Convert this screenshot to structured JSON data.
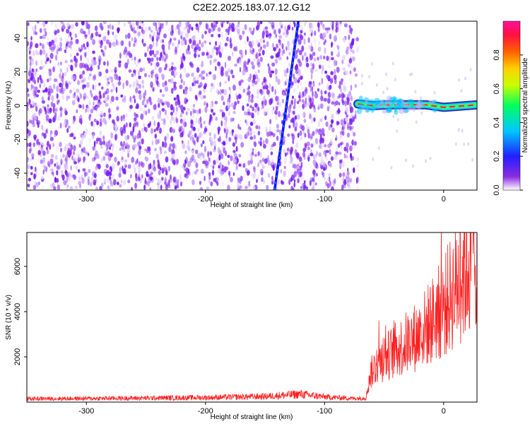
{
  "title": "C2E2.2025.183.07.12.G12",
  "colors": {
    "scatter_purple": "#7a1fff",
    "snr_line": "#ff2020",
    "axis": "#000000"
  },
  "chart_data": [
    {
      "type": "heatmap",
      "xlabel": "Height of straight line (km)",
      "ylabel": "Frequency (Hz)",
      "xlim": [
        -350,
        28
      ],
      "ylim": [
        -50,
        50
      ],
      "xticks": [
        -300,
        -200,
        -100,
        0
      ],
      "xtick_labels": [
        "-300",
        "-200",
        "-100",
        "0"
      ],
      "yticks": [
        -40,
        -20,
        0,
        20,
        40
      ],
      "ytick_labels": [
        "-40",
        "-20",
        "0",
        "20",
        "40"
      ],
      "noise_region_x": [
        -350,
        -72
      ],
      "track_points": [
        {
          "x": -142,
          "y": -50
        },
        {
          "x": -138,
          "y": -30
        },
        {
          "x": -134,
          "y": -10
        },
        {
          "x": -130,
          "y": 10
        },
        {
          "x": -126,
          "y": 30
        },
        {
          "x": -122,
          "y": 50
        }
      ],
      "carrier_points": [
        {
          "x": -72,
          "y": 1
        },
        {
          "x": -60,
          "y": 0
        },
        {
          "x": -45,
          "y": 0.5
        },
        {
          "x": -30,
          "y": 0.5
        },
        {
          "x": -15,
          "y": 0.5
        },
        {
          "x": 0,
          "y": -1
        },
        {
          "x": 28,
          "y": 0.5
        }
      ],
      "colorbar": {
        "label": "Normalized spectral amplitude",
        "range": [
          0.0,
          1.0
        ],
        "ticks": [
          0.0,
          0.2,
          0.4,
          0.6,
          0.8
        ],
        "tick_labels": [
          "0.0",
          "0.2",
          "0.4",
          "0.6",
          "0.8"
        ]
      }
    },
    {
      "type": "line",
      "series": [
        {
          "x_range": [
            -350,
            28
          ],
          "points": [
            {
              "x": -350,
              "y": 150
            },
            {
              "x": -300,
              "y": 160
            },
            {
              "x": -250,
              "y": 180
            },
            {
              "x": -200,
              "y": 200
            },
            {
              "x": -150,
              "y": 250
            },
            {
              "x": -120,
              "y": 350
            },
            {
              "x": -100,
              "y": 230
            },
            {
              "x": -75,
              "y": 160
            },
            {
              "x": -65,
              "y": 200
            },
            {
              "x": -62,
              "y": 1200
            },
            {
              "x": -55,
              "y": 1800
            },
            {
              "x": -40,
              "y": 2300
            },
            {
              "x": -20,
              "y": 3000
            },
            {
              "x": 0,
              "y": 4200
            },
            {
              "x": 15,
              "y": 5600
            },
            {
              "x": 28,
              "y": 6800
            }
          ]
        }
      ],
      "xlabel": "Height of straight line (km)",
      "ylabel": "SNR (10 * v/v)",
      "xlim": [
        -350,
        28
      ],
      "ylim": [
        0,
        7500
      ],
      "xticks": [
        -300,
        -200,
        -100,
        0
      ],
      "xtick_labels": [
        "-300",
        "-200",
        "-100",
        "0"
      ],
      "yticks": [
        2000,
        4000,
        6000
      ],
      "ytick_labels": [
        "2000",
        "4000",
        "6000"
      ]
    }
  ]
}
